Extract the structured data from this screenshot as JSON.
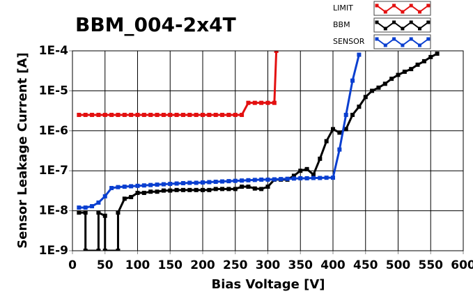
{
  "chart_data": {
    "type": "line",
    "title": "BBM_004-2x4T",
    "x_label": "Bias Voltage [V]",
    "y_label": "Sensor Leakage Current [A]",
    "log_y": true,
    "grid": true,
    "legend": "top-right",
    "xlim": [
      0,
      600
    ],
    "xticks": [
      0,
      50,
      100,
      150,
      200,
      250,
      300,
      350,
      400,
      450,
      500,
      550,
      600
    ],
    "ylim": [
      1e-09,
      0.0001
    ],
    "yticks": [
      {
        "value": 1e-09,
        "label": "1E-9"
      },
      {
        "value": 1e-08,
        "label": "1E-8"
      },
      {
        "value": 1e-07,
        "label": "1E-7"
      },
      {
        "value": 1e-06,
        "label": "1E-6"
      },
      {
        "value": 1e-05,
        "label": "1E-5"
      },
      {
        "value": 0.0001,
        "label": "1E-4"
      }
    ],
    "series": [
      {
        "name": "LIMIT",
        "color": "#e31010",
        "x": [
          10,
          20,
          30,
          40,
          50,
          60,
          70,
          80,
          90,
          100,
          110,
          120,
          130,
          140,
          150,
          160,
          170,
          180,
          190,
          200,
          210,
          220,
          230,
          240,
          250,
          260,
          270,
          280,
          290,
          300,
          310,
          313
        ],
        "values": [
          2.5e-06,
          2.5e-06,
          2.5e-06,
          2.5e-06,
          2.5e-06,
          2.5e-06,
          2.5e-06,
          2.5e-06,
          2.5e-06,
          2.5e-06,
          2.5e-06,
          2.5e-06,
          2.5e-06,
          2.5e-06,
          2.5e-06,
          2.5e-06,
          2.5e-06,
          2.5e-06,
          2.5e-06,
          2.5e-06,
          2.5e-06,
          2.5e-06,
          2.5e-06,
          2.5e-06,
          2.5e-06,
          2.5e-06,
          5e-06,
          5e-06,
          5e-06,
          5e-06,
          5e-06,
          0.0001
        ]
      },
      {
        "name": "BBM",
        "color": "#000000",
        "x": [
          10,
          20,
          20,
          40,
          40,
          50,
          50,
          70,
          70,
          80,
          90,
          100,
          110,
          120,
          130,
          140,
          150,
          160,
          170,
          180,
          190,
          200,
          210,
          220,
          230,
          240,
          250,
          260,
          270,
          280,
          290,
          300,
          310,
          320,
          330,
          340,
          350,
          360,
          370,
          380,
          390,
          400,
          410,
          420,
          430,
          440,
          450,
          460,
          470,
          480,
          490,
          500,
          510,
          520,
          530,
          540,
          550,
          560
        ],
        "values": [
          9e-09,
          9e-09,
          1e-09,
          1e-09,
          9e-09,
          7.5e-09,
          1e-09,
          1e-09,
          9e-09,
          2e-08,
          2.2e-08,
          2.8e-08,
          2.8e-08,
          3e-08,
          3e-08,
          3.2e-08,
          3.2e-08,
          3.3e-08,
          3.3e-08,
          3.3e-08,
          3.3e-08,
          3.3e-08,
          3.3e-08,
          3.5e-08,
          3.5e-08,
          3.5e-08,
          3.5e-08,
          4e-08,
          4e-08,
          3.6e-08,
          3.5e-08,
          4e-08,
          6e-08,
          6e-08,
          6e-08,
          7.5e-08,
          1e-07,
          1.1e-07,
          8e-08,
          2e-07,
          5.5e-07,
          1.1e-06,
          9e-07,
          1.1e-06,
          2.5e-06,
          4e-06,
          7e-06,
          1e-05,
          1.2e-05,
          1.5e-05,
          2e-05,
          2.5e-05,
          3e-05,
          3.5e-05,
          4.5e-05,
          5.5e-05,
          7e-05,
          8.5e-05
        ]
      },
      {
        "name": "SENSOR",
        "color": "#0a3fd0",
        "x": [
          10,
          20,
          30,
          40,
          50,
          60,
          70,
          80,
          90,
          100,
          110,
          120,
          130,
          140,
          150,
          160,
          170,
          180,
          190,
          200,
          210,
          220,
          230,
          240,
          250,
          260,
          270,
          280,
          290,
          300,
          310,
          320,
          330,
          340,
          350,
          360,
          370,
          380,
          390,
          400,
          410,
          420,
          430,
          440
        ],
        "values": [
          1.2e-08,
          1.2e-08,
          1.3e-08,
          1.6e-08,
          2.3e-08,
          3.7e-08,
          3.9e-08,
          4e-08,
          4.1e-08,
          4.2e-08,
          4.3e-08,
          4.4e-08,
          4.5e-08,
          4.6e-08,
          4.7e-08,
          4.8e-08,
          4.9e-08,
          5e-08,
          5e-08,
          5.1e-08,
          5.2e-08,
          5.3e-08,
          5.4e-08,
          5.5e-08,
          5.6e-08,
          5.7e-08,
          5.8e-08,
          5.9e-08,
          6e-08,
          6e-08,
          6.1e-08,
          6.2e-08,
          6.3e-08,
          6.4e-08,
          6.5e-08,
          6.5e-08,
          6.6e-08,
          6.6e-08,
          6.7e-08,
          6.7e-08,
          3.4e-07,
          2.5e-06,
          1.8e-05,
          8e-05
        ]
      }
    ]
  }
}
